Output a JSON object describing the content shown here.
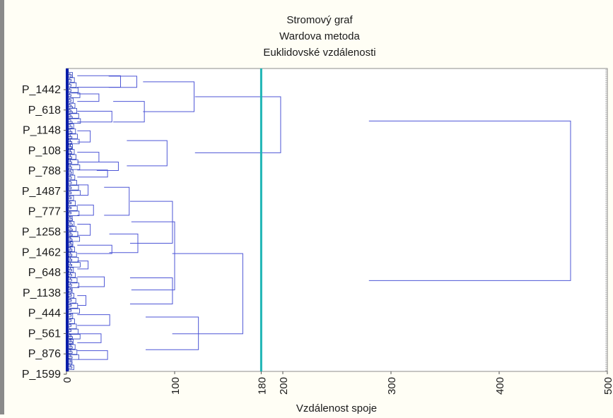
{
  "chart_data": {
    "type": "dendrogram",
    "title": [
      "Stromový graf",
      "Wardova metoda",
      "Euklidovské vzdálenosti"
    ],
    "xlabel": "Vzdálenost spoje",
    "x_ticks": [
      0,
      100,
      180,
      200,
      300,
      400,
      500
    ],
    "xlim": [
      0,
      500
    ],
    "grid": true,
    "cut_line": 180,
    "leaf_labels": [
      "P_1442",
      "P_618",
      "P_1148",
      "P_108",
      "P_788",
      "P_1487",
      "P_777",
      "P_1258",
      "P_1462",
      "P_648",
      "P_1138",
      "P_444",
      "P_561",
      "P_876",
      "P_1599"
    ],
    "merges": [
      {
        "distance": 50,
        "a": [
          0,
          1.1
        ],
        "b": [
          1.15,
          2.4
        ]
      },
      {
        "distance": 65,
        "a": [
          0.6,
          0.6
        ],
        "b": [
          1.8,
          1.8
        ]
      },
      {
        "distance": 30,
        "a": [
          2.2,
          2.8
        ],
        "b": [
          2.9,
          3.7
        ]
      },
      {
        "distance": 42,
        "a": [
          3.8,
          4.9
        ],
        "b": [
          5.0,
          6.0
        ]
      },
      {
        "distance": 72,
        "a": [
          3.3,
          3.3
        ],
        "b": [
          5.5,
          5.5
        ]
      },
      {
        "distance": 118,
        "a": [
          1.2,
          1.2
        ],
        "b": [
          4.4,
          4.4
        ]
      },
      {
        "distance": 22,
        "a": [
          6.0,
          6.9
        ],
        "b": [
          7.0,
          8.3
        ]
      },
      {
        "distance": 30,
        "a": [
          8.3,
          9.2
        ],
        "b": [
          9.3,
          10.3
        ]
      },
      {
        "distance": 38,
        "a": [
          10.3,
          11.0
        ],
        "b": [
          11.1,
          11.7
        ]
      },
      {
        "distance": 48,
        "a": [
          9.8,
          9.8
        ],
        "b": [
          10.7,
          10.7
        ]
      },
      {
        "distance": 93,
        "a": [
          7.5,
          7.5
        ],
        "b": [
          10.2,
          10.2
        ]
      },
      {
        "distance": 198,
        "a": [
          2.8,
          2.8
        ],
        "b": [
          8.8,
          8.8
        ]
      },
      {
        "distance": 20,
        "a": [
          11.8,
          12.7
        ],
        "b": [
          12.8,
          13.9
        ]
      },
      {
        "distance": 25,
        "a": [
          13.9,
          14.9
        ],
        "b": [
          15.0,
          16.0
        ]
      },
      {
        "distance": 58,
        "a": [
          12.5,
          12.5
        ],
        "b": [
          15.5,
          15.5
        ]
      },
      {
        "distance": 22,
        "a": [
          16.0,
          16.9
        ],
        "b": [
          17.0,
          18.3
        ]
      },
      {
        "distance": 42,
        "a": [
          18.3,
          19.1
        ],
        "b": [
          19.2,
          20.0
        ]
      },
      {
        "distance": 66,
        "a": [
          17.5,
          17.5
        ],
        "b": [
          19.5,
          19.5
        ]
      },
      {
        "distance": 98,
        "a": [
          14.0,
          14.0
        ],
        "b": [
          18.5,
          18.5
        ]
      },
      {
        "distance": 20,
        "a": [
          20.0,
          20.8
        ],
        "b": [
          20.9,
          21.6
        ]
      },
      {
        "distance": 35,
        "a": [
          21.6,
          22.6
        ],
        "b": [
          22.7,
          23.6
        ]
      },
      {
        "distance": 18,
        "a": [
          23.6,
          24.6
        ],
        "b": [
          24.7,
          25.6
        ]
      },
      {
        "distance": 98,
        "a": [
          22.2,
          22.2
        ],
        "b": [
          25.0,
          25.0
        ]
      },
      {
        "distance": 100,
        "a": [
          16.2,
          16.2
        ],
        "b": [
          23.5,
          23.5
        ]
      },
      {
        "distance": 40,
        "a": [
          25.6,
          26.7
        ],
        "b": [
          26.8,
          27.8
        ]
      },
      {
        "distance": 32,
        "a": [
          27.8,
          28.6
        ],
        "b": [
          28.7,
          29.6
        ]
      },
      {
        "distance": 38,
        "a": [
          29.6,
          30.4
        ],
        "b": [
          30.5,
          31.4
        ]
      },
      {
        "distance": 122,
        "a": [
          26.4,
          26.4
        ],
        "b": [
          29.9,
          29.9
        ]
      },
      {
        "distance": 163,
        "a": [
          19.6,
          19.6
        ],
        "b": [
          28.2,
          28.2
        ]
      },
      {
        "distance": 466,
        "a": [
          5.4,
          5.4
        ],
        "b": [
          22.5,
          22.5
        ]
      }
    ]
  }
}
